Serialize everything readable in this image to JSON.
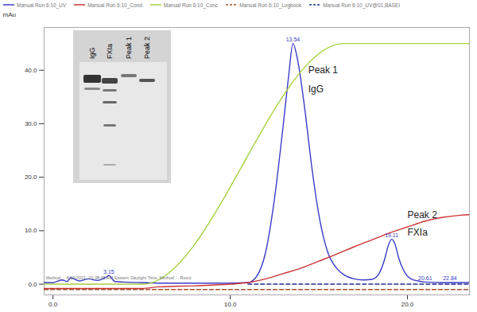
{
  "chart_data": {
    "type": "line",
    "y_label": "mAu",
    "xlim": [
      -0.5,
      23.5
    ],
    "ylim": [
      -2,
      48
    ],
    "xticks": [
      {
        "value": 0,
        "label": "0.0"
      },
      {
        "value": 10,
        "label": "10.0"
      },
      {
        "value": 20,
        "label": "20.0"
      }
    ],
    "yticks": [
      {
        "value": 0,
        "label": "0.0"
      },
      {
        "value": 10,
        "label": "10.0"
      },
      {
        "value": 20,
        "label": "20.0"
      },
      {
        "value": 30,
        "label": "30.0"
      },
      {
        "value": 40,
        "label": "40.0"
      }
    ],
    "grid": false,
    "legend": "top",
    "series": [
      {
        "name": "Manual Run 6:10_UV",
        "color": "#3b3bc8",
        "line_style": "solid",
        "x": [
          -0.5,
          0,
          0.5,
          0.8,
          1,
          1.5,
          2,
          2.5,
          3,
          3.15,
          3.5,
          4,
          5,
          6,
          8,
          10,
          11,
          11.5,
          12,
          12.5,
          13,
          13.3,
          13.54,
          13.8,
          14.2,
          14.6,
          15,
          15.5,
          16,
          16.5,
          17,
          17.5,
          18,
          18.4,
          18.7,
          18.9,
          19.11,
          19.3,
          19.5,
          19.8,
          20.2,
          20.6,
          21,
          22,
          23,
          23.5
        ],
        "values": [
          0.3,
          0.3,
          0.8,
          0.5,
          1.2,
          0.6,
          1,
          0.7,
          1.3,
          1.6,
          0.5,
          0.4,
          0.3,
          0.2,
          0.2,
          0.2,
          0.3,
          1.5,
          6,
          16,
          30,
          39,
          45,
          42,
          33,
          22,
          13,
          6,
          3,
          1.6,
          1,
          0.8,
          0.9,
          2,
          4.5,
          7,
          8.4,
          7.5,
          5,
          2.5,
          1,
          0.6,
          0.4,
          0.3,
          0.3,
          0.3
        ]
      },
      {
        "name": "Manual Run 6:10_Cond",
        "color": "#cc3333",
        "line_style": "solid",
        "x": [
          -0.5,
          5,
          6,
          8,
          10,
          11,
          12,
          13,
          14,
          15,
          16,
          17,
          18,
          19,
          20,
          21,
          22,
          23,
          23.5
        ],
        "values": [
          -0.8,
          -0.8,
          -0.5,
          -0.3,
          0,
          0.3,
          1,
          2,
          3,
          4.3,
          5.6,
          7,
          8.3,
          9.6,
          10.7,
          11.8,
          12.5,
          12.9,
          13
        ]
      },
      {
        "name": "Manual Run 6:10_Conc",
        "color": "#a8d040",
        "line_style": "solid",
        "x": [
          -0.5,
          5.07,
          16.4,
          23.5
        ],
        "values": [
          0,
          0,
          45,
          45
        ]
      },
      {
        "name": "Manual Run 6:10_Logbook",
        "color": "#a0522d",
        "line_style": "dashed",
        "x": [
          -0.5,
          23.5
        ],
        "values": [
          -1,
          -1
        ]
      },
      {
        "name": "Manual Run 6:10_UV@01,BASEI",
        "color": "#1f2f8f",
        "line_style": "dashed",
        "x": [
          11,
          23.5
        ],
        "values": [
          0,
          0
        ]
      }
    ],
    "peak_labels": [
      {
        "text": "13.54",
        "x": 13.54,
        "y": 45
      },
      {
        "text": "19.11",
        "x": 19.11,
        "y": 8.4
      },
      {
        "text": "3.15",
        "x": 3.15,
        "y": 1.6
      },
      {
        "text": "20.61",
        "x": 21.0,
        "y": 0.3
      },
      {
        "text": "22.84",
        "x": 22.4,
        "y": 0.3
      }
    ],
    "annotations": [
      {
        "text": "Peak 1",
        "x": 14.4,
        "y": 40
      },
      {
        "text": "IgG",
        "x": 14.4,
        "y": 36.5
      },
      {
        "text": "Peak 2",
        "x": 20.0,
        "y": 13
      },
      {
        "text": "FXIa",
        "x": 20.0,
        "y": 9.6
      }
    ],
    "method_note": {
      "text": "Method ... 6/10/2021, 10:38:45 AM Eastern Daylight Time, Method ... Resul",
      "x": -0.4,
      "y": 1.2
    },
    "inset": {
      "lanes": [
        "IgG",
        "FXIa",
        "Peak 1",
        "Peak 2"
      ]
    }
  }
}
